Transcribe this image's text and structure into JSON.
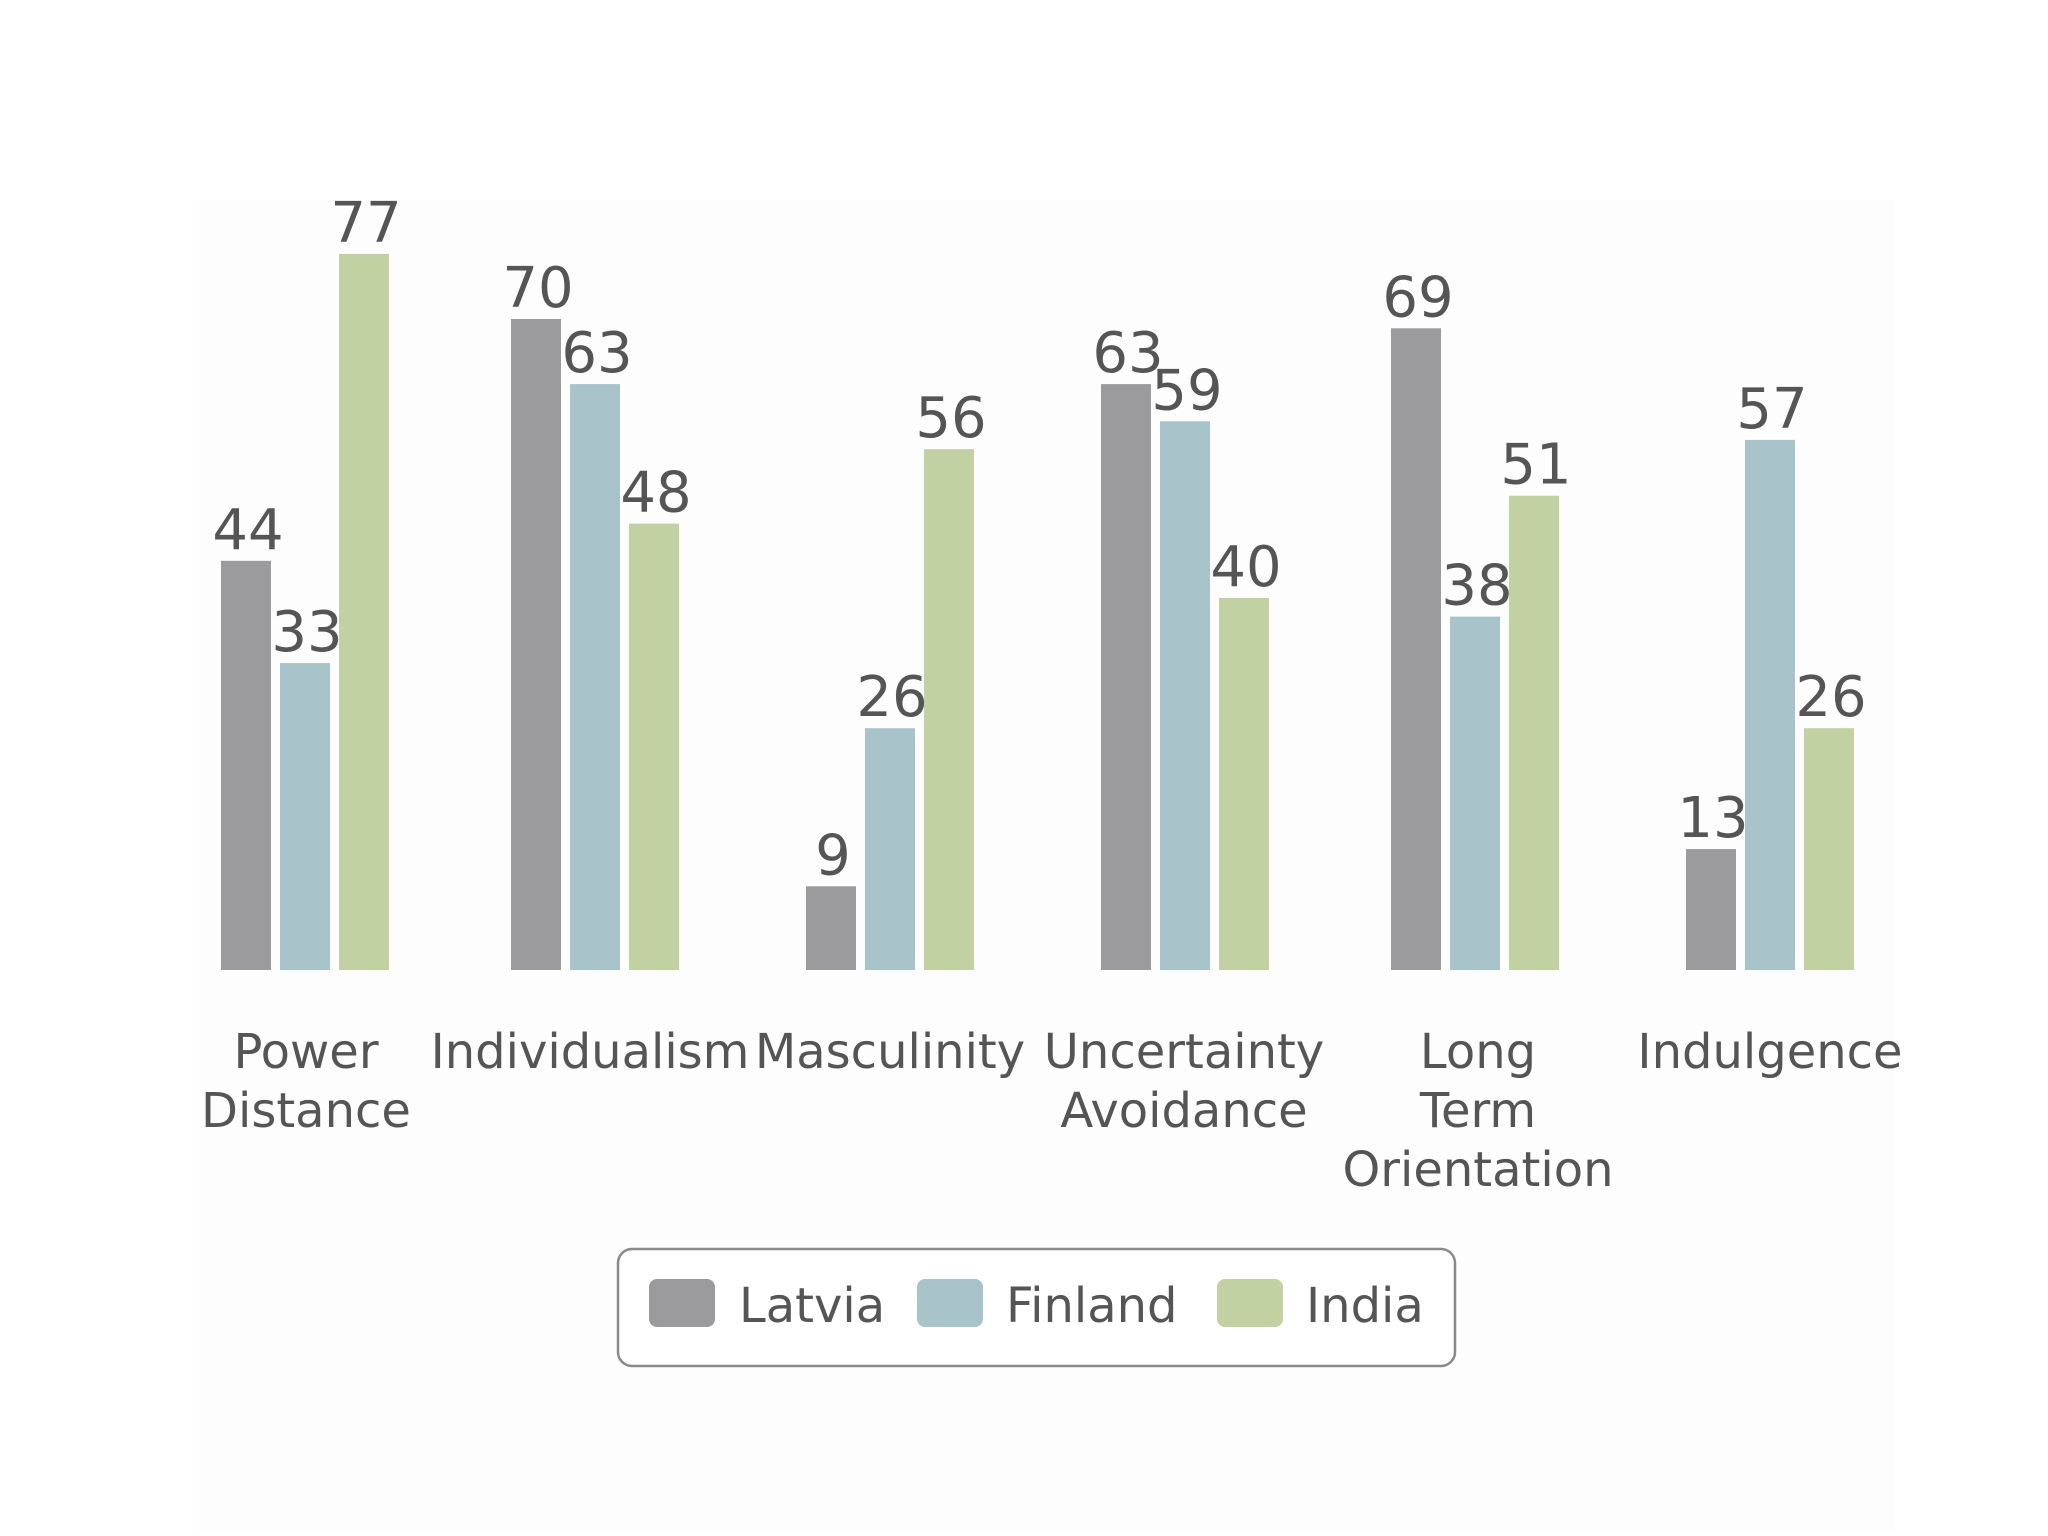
{
  "chart_data": {
    "type": "bar",
    "title": "",
    "xlabel": "",
    "ylabel": "",
    "grid": false,
    "legend_position": "bottom-center",
    "ylim": [
      0,
      100
    ],
    "categories": [
      [
        "Power",
        "Distance"
      ],
      [
        "Individualism"
      ],
      [
        "Masculinity"
      ],
      [
        "Uncertainty",
        "Avoidance"
      ],
      [
        "Long",
        "Term",
        "Orientation"
      ],
      [
        "Indulgence"
      ]
    ],
    "series": [
      {
        "name": "Latvia",
        "color": "#9b9a9d",
        "values": [
          44,
          70,
          9,
          63,
          69,
          13
        ]
      },
      {
        "name": "Finland",
        "color": "#a9c3ca",
        "values": [
          33,
          63,
          26,
          59,
          38,
          57
        ]
      },
      {
        "name": "India",
        "color": "#c2d1a2",
        "values": [
          77,
          48,
          56,
          40,
          51,
          26
        ]
      }
    ]
  }
}
